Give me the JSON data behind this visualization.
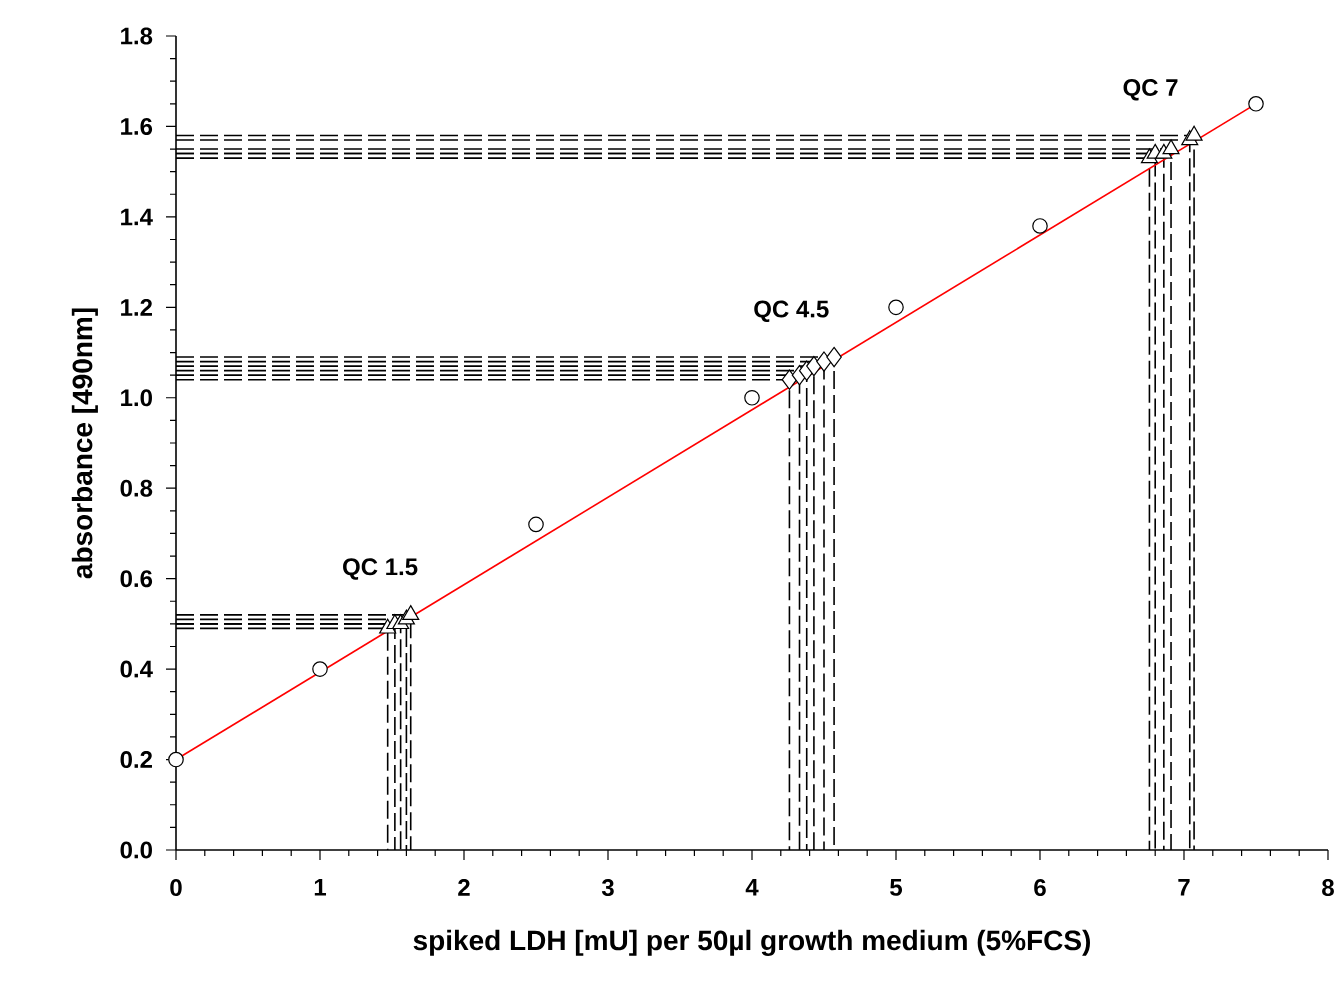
{
  "chart_data": {
    "type": "scatter",
    "xlabel": "spiked LDH [mU] per 50µl growth medium (5%FCS)",
    "ylabel": "absorbance [490nm]",
    "xlim": [
      0,
      8
    ],
    "ylim": [
      0,
      1.8
    ],
    "xticks": [
      0,
      1,
      2,
      3,
      4,
      5,
      6,
      7,
      8
    ],
    "yticks": [
      {
        "value": 0,
        "label": "0.0"
      },
      0.2,
      0.4,
      0.6,
      0.8,
      {
        "value": 1,
        "label": "1.0"
      },
      1.2,
      1.4,
      1.6,
      1.8
    ],
    "grid": false,
    "annotations": [
      "QC 1.5",
      "QC 4.5",
      "QC 7"
    ],
    "series": [
      {
        "type": "line",
        "color": "#000000",
        "line_style": "dashed",
        "marker": "none",
        "x": [
          0,
          1.47,
          1.47
        ],
        "values": [
          0.49,
          0.49,
          0
        ]
      },
      {
        "type": "line",
        "color": "#000000",
        "line_style": "dashed",
        "marker": "none",
        "x": [
          0,
          1.52,
          1.52
        ],
        "values": [
          0.5,
          0.5,
          0
        ]
      },
      {
        "type": "line",
        "color": "#000000",
        "line_style": "dashed",
        "marker": "none",
        "x": [
          0,
          1.56,
          1.56
        ],
        "values": [
          0.5,
          0.5,
          0
        ]
      },
      {
        "type": "line",
        "color": "#000000",
        "line_style": "dashed",
        "marker": "none",
        "x": [
          0,
          1.6,
          1.6
        ],
        "values": [
          0.51,
          0.51,
          0
        ]
      },
      {
        "type": "line",
        "color": "#000000",
        "line_style": "dashed",
        "marker": "none",
        "x": [
          0,
          1.63,
          1.63
        ],
        "values": [
          0.52,
          0.52,
          0
        ]
      },
      {
        "type": "line",
        "color": "#000000",
        "line_style": "dashed",
        "marker": "none",
        "x": [
          0,
          4.26,
          4.26
        ],
        "values": [
          1.04,
          1.04,
          0
        ]
      },
      {
        "type": "line",
        "color": "#000000",
        "line_style": "dashed",
        "marker": "none",
        "x": [
          0,
          4.33,
          4.33
        ],
        "values": [
          1.05,
          1.05,
          0
        ]
      },
      {
        "type": "line",
        "color": "#000000",
        "line_style": "dashed",
        "marker": "none",
        "x": [
          0,
          4.38,
          4.38
        ],
        "values": [
          1.06,
          1.06,
          0
        ]
      },
      {
        "type": "line",
        "color": "#000000",
        "line_style": "dashed",
        "marker": "none",
        "x": [
          0,
          4.43,
          4.43
        ],
        "values": [
          1.07,
          1.07,
          0
        ]
      },
      {
        "type": "line",
        "color": "#000000",
        "line_style": "dashed",
        "marker": "none",
        "x": [
          0,
          4.5,
          4.5
        ],
        "values": [
          1.08,
          1.08,
          0
        ]
      },
      {
        "type": "line",
        "color": "#000000",
        "line_style": "dashed",
        "marker": "none",
        "x": [
          0,
          4.57,
          4.57
        ],
        "values": [
          1.09,
          1.09,
          0
        ]
      },
      {
        "type": "line",
        "color": "#000000",
        "line_style": "dashed",
        "marker": "none",
        "x": [
          0,
          6.76,
          6.76
        ],
        "values": [
          1.53,
          1.53,
          0
        ]
      },
      {
        "type": "line",
        "color": "#000000",
        "line_style": "dashed",
        "marker": "none",
        "x": [
          0,
          6.8,
          6.8
        ],
        "values": [
          1.54,
          1.54,
          0
        ]
      },
      {
        "type": "line",
        "color": "#000000",
        "line_style": "dashed",
        "marker": "none",
        "x": [
          0,
          6.86,
          6.86
        ],
        "values": [
          1.54,
          1.54,
          0
        ]
      },
      {
        "type": "line",
        "color": "#000000",
        "line_style": "dashed",
        "marker": "none",
        "x": [
          0,
          6.91,
          6.91
        ],
        "values": [
          1.55,
          1.55,
          0
        ]
      },
      {
        "type": "line",
        "color": "#000000",
        "line_style": "dashed",
        "marker": "none",
        "x": [
          0,
          7.04,
          7.04
        ],
        "values": [
          1.57,
          1.57,
          0
        ]
      },
      {
        "type": "line",
        "color": "#000000",
        "line_style": "dashed",
        "marker": "none",
        "x": [
          0,
          7.07,
          7.07
        ],
        "values": [
          1.58,
          1.58,
          0
        ]
      },
      {
        "type": "line",
        "color": "#ff0000",
        "line_style": "solid",
        "marker": "none",
        "x": [
          0,
          7.5
        ],
        "values": [
          0.2,
          1.65
        ]
      },
      {
        "color": "#000000",
        "marker": "circle",
        "x": [
          0,
          1,
          2.5,
          4,
          5,
          6,
          7.5
        ],
        "values": [
          0.2,
          0.4,
          0.72,
          1.0,
          1.2,
          1.38,
          1.65
        ]
      },
      {
        "color": "#000000",
        "marker": "triangle",
        "x": [
          1.47,
          1.52,
          1.56,
          1.6,
          1.63
        ],
        "values": [
          0.49,
          0.5,
          0.5,
          0.51,
          0.52
        ]
      },
      {
        "color": "#000000",
        "marker": "diamond",
        "x": [
          4.26,
          4.33,
          4.38,
          4.43,
          4.5,
          4.57
        ],
        "values": [
          1.04,
          1.05,
          1.06,
          1.07,
          1.08,
          1.09
        ]
      },
      {
        "color": "#000000",
        "marker": "triangle",
        "x": [
          6.76,
          6.8,
          6.86,
          6.91,
          7.04,
          7.07
        ],
        "values": [
          1.53,
          1.54,
          1.54,
          1.55,
          1.57,
          1.58
        ]
      }
    ]
  }
}
